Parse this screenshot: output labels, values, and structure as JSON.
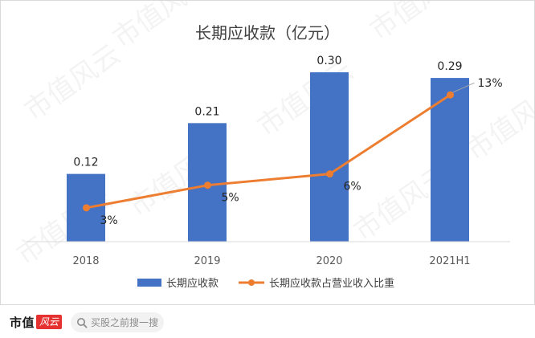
{
  "chart_data": {
    "type": "bar",
    "title": "长期应收款（亿元）",
    "categories": [
      "2018",
      "2019",
      "2020",
      "2021H1"
    ],
    "series": [
      {
        "name": "长期应收款",
        "type": "bar",
        "axis": "left",
        "values": [
          0.12,
          0.21,
          0.3,
          0.29
        ],
        "labels": [
          "0.12",
          "0.21",
          "0.30",
          "0.29"
        ],
        "color": "#4472c4"
      },
      {
        "name": "长期应收款占营业收入比重",
        "type": "line",
        "axis": "right",
        "values": [
          3,
          5,
          6,
          13
        ],
        "labels": [
          "3%",
          "5%",
          "6%",
          "13%"
        ],
        "color": "#ed7d31"
      }
    ],
    "ylim": [
      0,
      0.32
    ],
    "y2lim": [
      0,
      16
    ],
    "grid": false,
    "legend_position": "bottom"
  },
  "watermark": {
    "text": "市值风云"
  },
  "footer": {
    "brand_text": "市值",
    "brand_badge": "风云",
    "search_placeholder": "买股之前搜一搜"
  }
}
